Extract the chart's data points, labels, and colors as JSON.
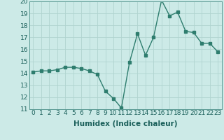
{
  "x": [
    0,
    1,
    2,
    3,
    4,
    5,
    6,
    7,
    8,
    9,
    10,
    11,
    12,
    13,
    14,
    15,
    16,
    17,
    18,
    19,
    20,
    21,
    22,
    23
  ],
  "y": [
    14.1,
    14.2,
    14.2,
    14.3,
    14.5,
    14.5,
    14.4,
    14.2,
    13.9,
    12.5,
    11.9,
    11.1,
    14.9,
    17.3,
    15.5,
    17.0,
    20.1,
    18.8,
    19.1,
    17.5,
    17.4,
    16.5,
    16.5,
    15.8
  ],
  "line_color": "#2e7d6e",
  "bg_color": "#cceae7",
  "grid_color_major": "#b0d4d0",
  "grid_color_minor": "#c8e5e2",
  "xlabel": "Humidex (Indice chaleur)",
  "ylim": [
    11,
    20
  ],
  "xlim": [
    -0.5,
    23.5
  ],
  "yticks": [
    11,
    12,
    13,
    14,
    15,
    16,
    17,
    18,
    19,
    20
  ],
  "xticks": [
    0,
    1,
    2,
    3,
    4,
    5,
    6,
    7,
    8,
    9,
    10,
    11,
    12,
    13,
    14,
    15,
    16,
    17,
    18,
    19,
    20,
    21,
    22,
    23
  ],
  "xlabel_fontsize": 7.5,
  "tick_fontsize": 6.5,
  "marker_size": 2.5,
  "line_width": 1.0
}
